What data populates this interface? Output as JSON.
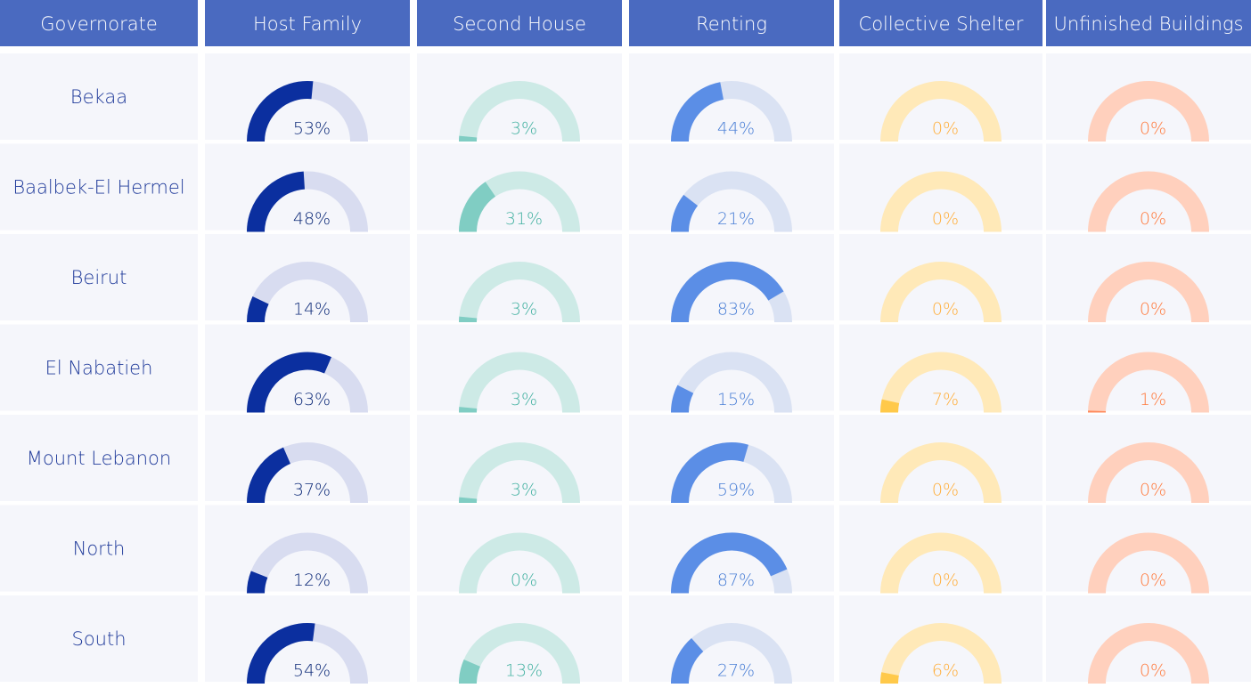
{
  "table": {
    "type": "gauge",
    "range": [
      0,
      100
    ],
    "columns": [
      "Governorate",
      "Host Family",
      "Second House",
      "Renting",
      "Collective Shelter",
      "Unfinished Buildings"
    ],
    "colors": [
      {
        "fill": "#0b2f9f",
        "track": "#d8dcf0",
        "text": "#0d2a78"
      },
      {
        "fill": "#80cdc3",
        "track": "#cdeae6",
        "text": "#45b2a2"
      },
      {
        "fill": "#5b8ee6",
        "track": "#dae2f3",
        "text": "#4a7fd6"
      },
      {
        "fill": "#ffc94a",
        "track": "#ffe9b8",
        "text": "#ffae3a"
      },
      {
        "fill": "#ff8a5b",
        "track": "#ffd0bd",
        "text": "#ff7a3d"
      }
    ],
    "rows": [
      {
        "label": "Bekaa",
        "values": [
          53,
          3,
          44,
          0,
          0
        ],
        "value_labels": [
          "53%",
          "3%",
          "44%",
          "0%",
          "0%"
        ]
      },
      {
        "label": "Baalbek-El Hermel",
        "values": [
          48,
          31,
          21,
          0,
          0
        ],
        "value_labels": [
          "48%",
          "31%",
          "21%",
          "0%",
          "0%"
        ]
      },
      {
        "label": "Beirut",
        "values": [
          14,
          3,
          83,
          0,
          0
        ],
        "value_labels": [
          "14%",
          "3%",
          "83%",
          "0%",
          "0%"
        ]
      },
      {
        "label": "El Nabatieh",
        "values": [
          63,
          3,
          15,
          7,
          1
        ],
        "value_labels": [
          "63%",
          "3%",
          "15%",
          "7%",
          "1%"
        ]
      },
      {
        "label": "Mount Lebanon",
        "values": [
          37,
          3,
          59,
          0,
          0
        ],
        "value_labels": [
          "37%",
          "3%",
          "59%",
          "0%",
          "0%"
        ]
      },
      {
        "label": "North",
        "values": [
          12,
          0,
          87,
          0,
          0
        ],
        "value_labels": [
          "12%",
          "0%",
          "87%",
          "0%",
          "0%"
        ]
      },
      {
        "label": "South",
        "values": [
          54,
          13,
          27,
          6,
          0
        ],
        "value_labels": [
          "54%",
          "13%",
          "27%",
          "6%",
          "0%"
        ]
      }
    ]
  }
}
